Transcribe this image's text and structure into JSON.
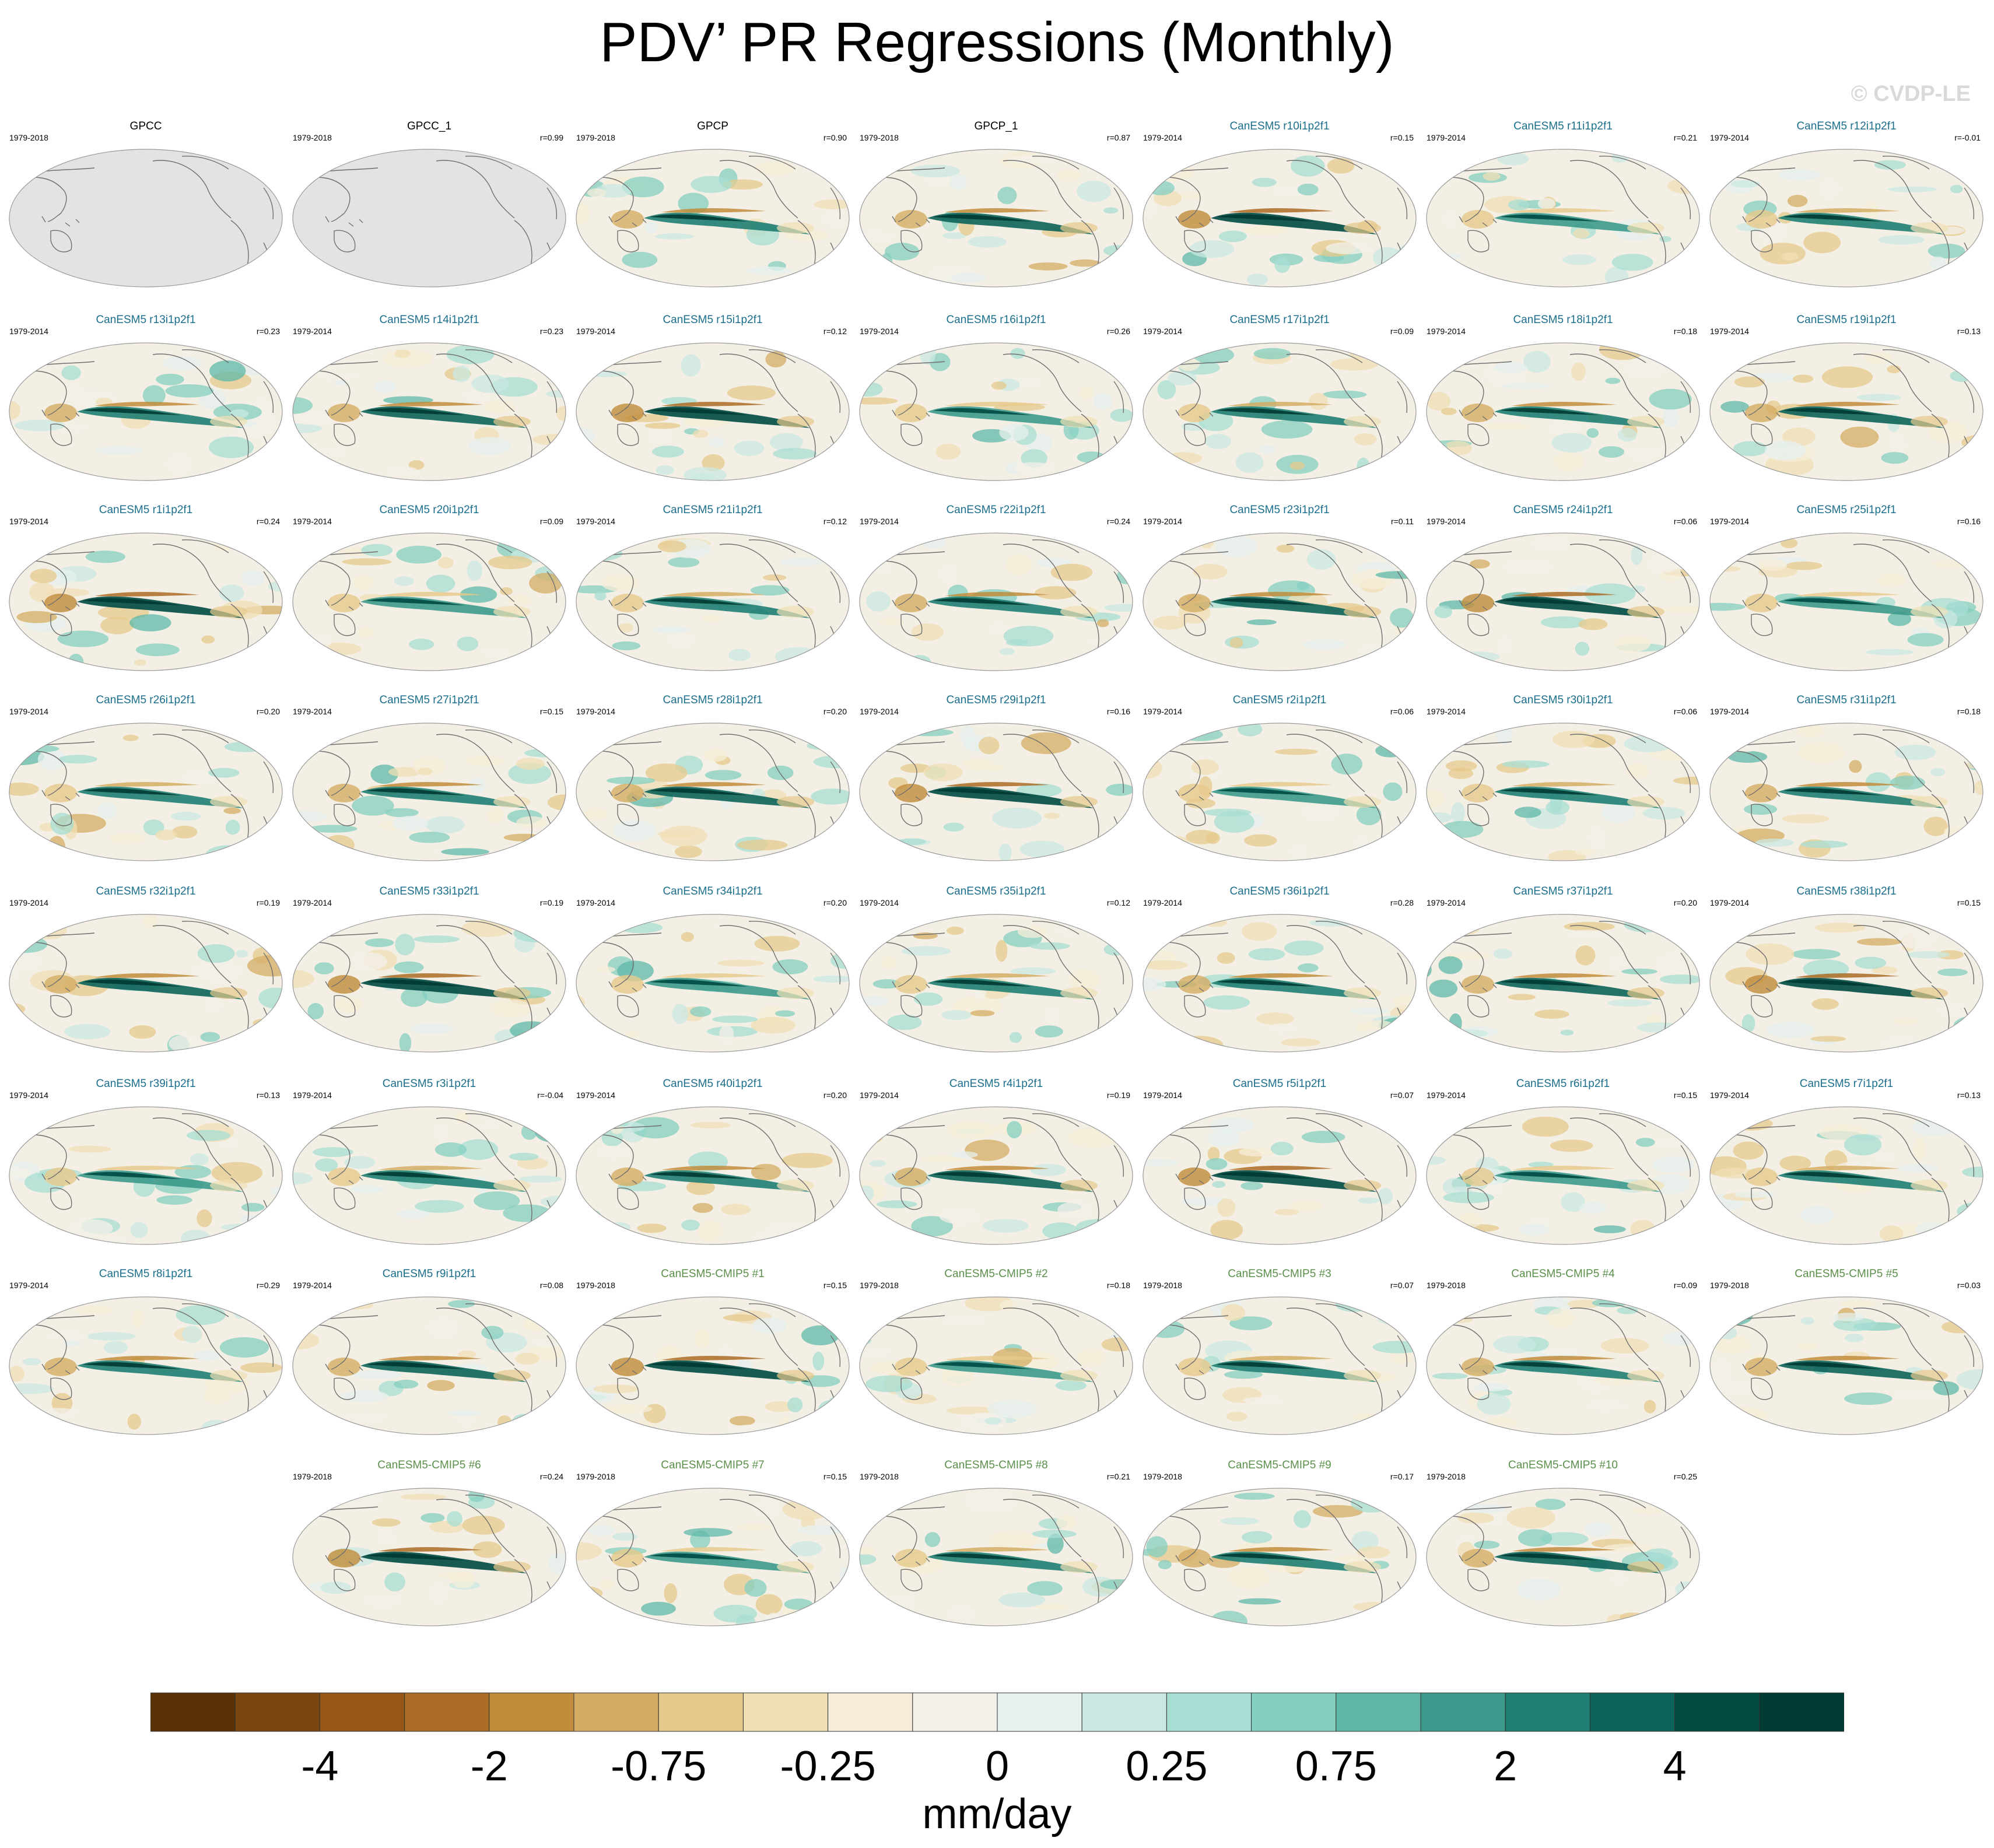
{
  "title": "PDV’ PR Regressions (Monthly)",
  "watermark": "© CVDP-LE",
  "chart_data": {
    "type": "heatmap",
    "title": "PDV’ PR Regressions (Monthly)",
    "map_projection": "global map, Pacific-centered",
    "units": "mm/day",
    "colorbar": {
      "tick_labels": [
        "-4",
        "-2",
        "-0.75",
        "-0.25",
        "0",
        "0.25",
        "0.75",
        "2",
        "4"
      ],
      "colors": [
        "#5a3208",
        "#7a4510",
        "#955617",
        "#ab6c26",
        "#c18c3b",
        "#d4ad64",
        "#e6c98c",
        "#f0dfb5",
        "#f5edd8",
        "#f3f0e8",
        "#e6f0ed",
        "#c9e8e1",
        "#a8ddd3",
        "#84cfc0",
        "#5fb8a8",
        "#3c9a8c",
        "#1f7e72",
        "#0c6359",
        "#004a42",
        "#003a32"
      ]
    },
    "panels": [
      {
        "name": "GPCC",
        "period": "1979-2018",
        "r": "",
        "kind": "obs",
        "land_only": true
      },
      {
        "name": "GPCC_1",
        "period": "1979-2018",
        "r": "r=0.99",
        "kind": "obs",
        "land_only": true
      },
      {
        "name": "GPCP",
        "period": "1979-2018",
        "r": "r=0.90",
        "kind": "obs"
      },
      {
        "name": "GPCP_1",
        "period": "1979-2018",
        "r": "r=0.87",
        "kind": "obs"
      },
      {
        "name": "CanESM5 r10i1p2f1",
        "period": "1979-2014",
        "r": "r=0.15",
        "kind": "model"
      },
      {
        "name": "CanESM5 r11i1p2f1",
        "period": "1979-2014",
        "r": "r=0.21",
        "kind": "model"
      },
      {
        "name": "CanESM5 r12i1p2f1",
        "period": "1979-2014",
        "r": "r=-0.01",
        "kind": "model"
      },
      {
        "name": "CanESM5 r13i1p2f1",
        "period": "1979-2014",
        "r": "r=0.23",
        "kind": "model"
      },
      {
        "name": "CanESM5 r14i1p2f1",
        "period": "1979-2014",
        "r": "r=0.23",
        "kind": "model"
      },
      {
        "name": "CanESM5 r15i1p2f1",
        "period": "1979-2014",
        "r": "r=0.12",
        "kind": "model"
      },
      {
        "name": "CanESM5 r16i1p2f1",
        "period": "1979-2014",
        "r": "r=0.26",
        "kind": "model"
      },
      {
        "name": "CanESM5 r17i1p2f1",
        "period": "1979-2014",
        "r": "r=0.09",
        "kind": "model"
      },
      {
        "name": "CanESM5 r18i1p2f1",
        "period": "1979-2014",
        "r": "r=0.18",
        "kind": "model"
      },
      {
        "name": "CanESM5 r19i1p2f1",
        "period": "1979-2014",
        "r": "r=0.13",
        "kind": "model"
      },
      {
        "name": "CanESM5 r1i1p2f1",
        "period": "1979-2014",
        "r": "r=0.24",
        "kind": "model"
      },
      {
        "name": "CanESM5 r20i1p2f1",
        "period": "1979-2014",
        "r": "r=0.09",
        "kind": "model"
      },
      {
        "name": "CanESM5 r21i1p2f1",
        "period": "1979-2014",
        "r": "r=0.12",
        "kind": "model"
      },
      {
        "name": "CanESM5 r22i1p2f1",
        "period": "1979-2014",
        "r": "r=0.24",
        "kind": "model"
      },
      {
        "name": "CanESM5 r23i1p2f1",
        "period": "1979-2014",
        "r": "r=0.11",
        "kind": "model"
      },
      {
        "name": "CanESM5 r24i1p2f1",
        "period": "1979-2014",
        "r": "r=0.06",
        "kind": "model"
      },
      {
        "name": "CanESM5 r25i1p2f1",
        "period": "1979-2014",
        "r": "r=0.16",
        "kind": "model"
      },
      {
        "name": "CanESM5 r26i1p2f1",
        "period": "1979-2014",
        "r": "r=0.20",
        "kind": "model"
      },
      {
        "name": "CanESM5 r27i1p2f1",
        "period": "1979-2014",
        "r": "r=0.15",
        "kind": "model"
      },
      {
        "name": "CanESM5 r28i1p2f1",
        "period": "1979-2014",
        "r": "r=0.20",
        "kind": "model"
      },
      {
        "name": "CanESM5 r29i1p2f1",
        "period": "1979-2014",
        "r": "r=0.16",
        "kind": "model"
      },
      {
        "name": "CanESM5 r2i1p2f1",
        "period": "1979-2014",
        "r": "r=0.06",
        "kind": "model"
      },
      {
        "name": "CanESM5 r30i1p2f1",
        "period": "1979-2014",
        "r": "r=0.06",
        "kind": "model"
      },
      {
        "name": "CanESM5 r31i1p2f1",
        "period": "1979-2014",
        "r": "r=0.18",
        "kind": "model"
      },
      {
        "name": "CanESM5 r32i1p2f1",
        "period": "1979-2014",
        "r": "r=0.19",
        "kind": "model"
      },
      {
        "name": "CanESM5 r33i1p2f1",
        "period": "1979-2014",
        "r": "r=0.19",
        "kind": "model"
      },
      {
        "name": "CanESM5 r34i1p2f1",
        "period": "1979-2014",
        "r": "r=0.20",
        "kind": "model"
      },
      {
        "name": "CanESM5 r35i1p2f1",
        "period": "1979-2014",
        "r": "r=0.12",
        "kind": "model"
      },
      {
        "name": "CanESM5 r36i1p2f1",
        "period": "1979-2014",
        "r": "r=0.28",
        "kind": "model"
      },
      {
        "name": "CanESM5 r37i1p2f1",
        "period": "1979-2014",
        "r": "r=0.20",
        "kind": "model"
      },
      {
        "name": "CanESM5 r38i1p2f1",
        "period": "1979-2014",
        "r": "r=0.15",
        "kind": "model"
      },
      {
        "name": "CanESM5 r39i1p2f1",
        "period": "1979-2014",
        "r": "r=0.13",
        "kind": "model"
      },
      {
        "name": "CanESM5 r3i1p2f1",
        "period": "1979-2014",
        "r": "r=-0.04",
        "kind": "model"
      },
      {
        "name": "CanESM5 r40i1p2f1",
        "period": "1979-2014",
        "r": "r=0.20",
        "kind": "model"
      },
      {
        "name": "CanESM5 r4i1p2f1",
        "period": "1979-2014",
        "r": "r=0.19",
        "kind": "model"
      },
      {
        "name": "CanESM5 r5i1p2f1",
        "period": "1979-2014",
        "r": "r=0.07",
        "kind": "model"
      },
      {
        "name": "CanESM5 r6i1p2f1",
        "period": "1979-2014",
        "r": "r=0.15",
        "kind": "model"
      },
      {
        "name": "CanESM5 r7i1p2f1",
        "period": "1979-2014",
        "r": "r=0.13",
        "kind": "model"
      },
      {
        "name": "CanESM5 r8i1p2f1",
        "period": "1979-2014",
        "r": "r=0.29",
        "kind": "model"
      },
      {
        "name": "CanESM5 r9i1p2f1",
        "period": "1979-2014",
        "r": "r=0.08",
        "kind": "model"
      },
      {
        "name": "CanESM5-CMIP5 #1",
        "period": "1979-2018",
        "r": "r=0.15",
        "kind": "cmip5"
      },
      {
        "name": "CanESM5-CMIP5 #2",
        "period": "1979-2018",
        "r": "r=0.18",
        "kind": "cmip5"
      },
      {
        "name": "CanESM5-CMIP5 #3",
        "period": "1979-2018",
        "r": "r=0.07",
        "kind": "cmip5"
      },
      {
        "name": "CanESM5-CMIP5 #4",
        "period": "1979-2018",
        "r": "r=0.09",
        "kind": "cmip5"
      },
      {
        "name": "CanESM5-CMIP5 #5",
        "period": "1979-2018",
        "r": "r=0.03",
        "kind": "cmip5"
      },
      {
        "name": "CanESM5-CMIP5 #6",
        "period": "1979-2018",
        "r": "r=0.24",
        "kind": "cmip5"
      },
      {
        "name": "CanESM5-CMIP5 #7",
        "period": "1979-2018",
        "r": "r=0.15",
        "kind": "cmip5"
      },
      {
        "name": "CanESM5-CMIP5 #8",
        "period": "1979-2018",
        "r": "r=0.21",
        "kind": "cmip5"
      },
      {
        "name": "CanESM5-CMIP5 #9",
        "period": "1979-2018",
        "r": "r=0.17",
        "kind": "cmip5"
      },
      {
        "name": "CanESM5-CMIP5 #10",
        "period": "1979-2018",
        "r": "r=0.25",
        "kind": "cmip5"
      }
    ]
  }
}
